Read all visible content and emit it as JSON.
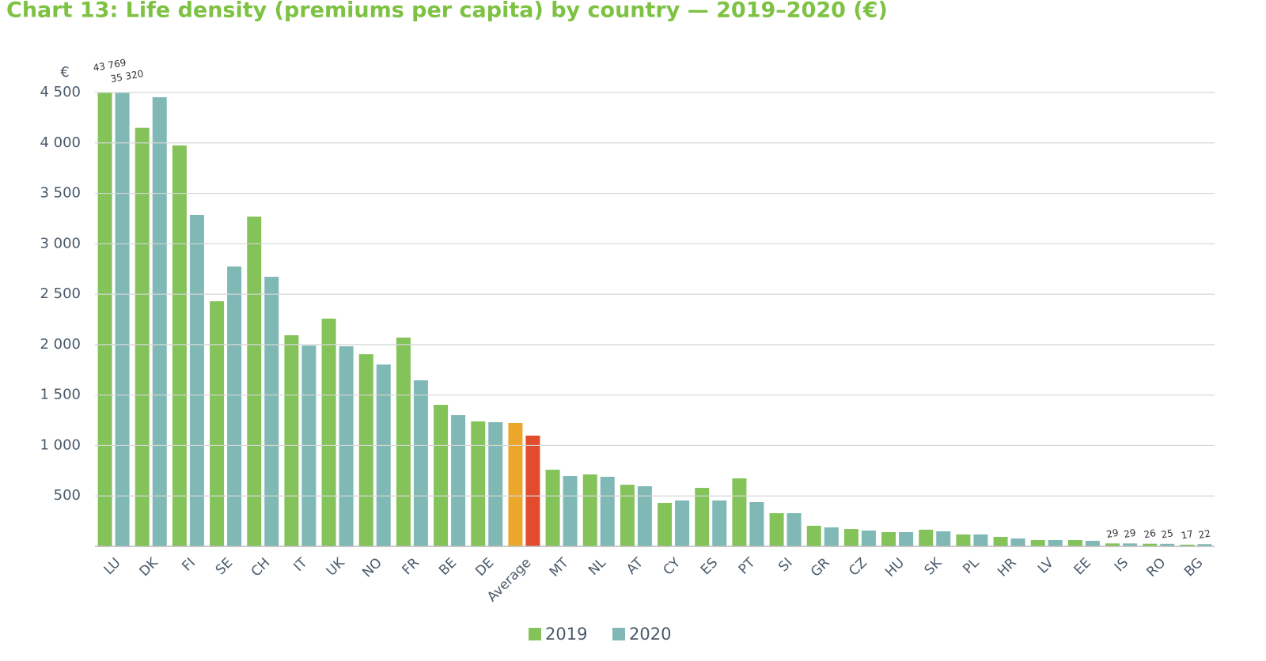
{
  "chart_data": {
    "type": "bar",
    "title": "Chart 13: Life density (premiums per capita) by country — 2019–2020 (€)",
    "y_unit": "€",
    "categories": [
      "LU",
      "DK",
      "FI",
      "SE",
      "CH",
      "IT",
      "UK",
      "NO",
      "FR",
      "BE",
      "DE",
      "Average",
      "MT",
      "NL",
      "AT",
      "CY",
      "ES",
      "PT",
      "SI",
      "GR",
      "CZ",
      "HU",
      "SK",
      "PL",
      "HR",
      "LV",
      "EE",
      "IS",
      "RO",
      "BG"
    ],
    "highlight_category": "Average",
    "series": [
      {
        "name": "2019",
        "color": "#84c35a",
        "highlight_color": "#eba62b",
        "values": [
          43769,
          4150,
          3975,
          2430,
          3270,
          2093,
          2258,
          1905,
          2070,
          1403,
          1239,
          1223,
          760,
          713,
          611,
          431,
          580,
          674,
          329,
          204,
          172,
          141,
          165,
          118,
          94,
          63,
          63,
          29,
          26,
          17
        ],
        "value_labels": [
          "43 769",
          null,
          null,
          null,
          null,
          null,
          null,
          null,
          null,
          null,
          null,
          null,
          null,
          null,
          null,
          null,
          null,
          null,
          null,
          null,
          null,
          null,
          null,
          null,
          null,
          null,
          null,
          "29",
          "26",
          "17"
        ]
      },
      {
        "name": "2020",
        "color": "#7fb8b4",
        "highlight_color": "#e24b2c",
        "values": [
          35320,
          4453,
          3285,
          2775,
          2673,
          1991,
          1984,
          1803,
          1646,
          1301,
          1231,
          1098,
          698,
          690,
          596,
          455,
          455,
          439,
          329,
          188,
          157,
          141,
          149,
          118,
          78,
          63,
          55,
          29,
          25,
          22
        ],
        "value_labels": [
          "35 320",
          null,
          null,
          null,
          null,
          null,
          null,
          null,
          null,
          null,
          null,
          null,
          null,
          null,
          null,
          null,
          null,
          null,
          null,
          null,
          null,
          null,
          null,
          null,
          null,
          null,
          null,
          "29",
          "25",
          "22"
        ]
      }
    ],
    "ylim": [
      0,
      4500
    ],
    "yticks": [
      500,
      {
        "value": 1000,
        "label": "1 000"
      },
      {
        "value": 1500,
        "label": "1 500"
      },
      {
        "value": 2000,
        "label": "2 000"
      },
      {
        "value": 2500,
        "label": "2 500"
      },
      {
        "value": 3000,
        "label": "3 000"
      },
      {
        "value": 3500,
        "label": "3 500"
      },
      {
        "value": 4000,
        "label": "4 000"
      },
      {
        "value": 4500,
        "label": "4 500"
      }
    ],
    "grid": true
  }
}
